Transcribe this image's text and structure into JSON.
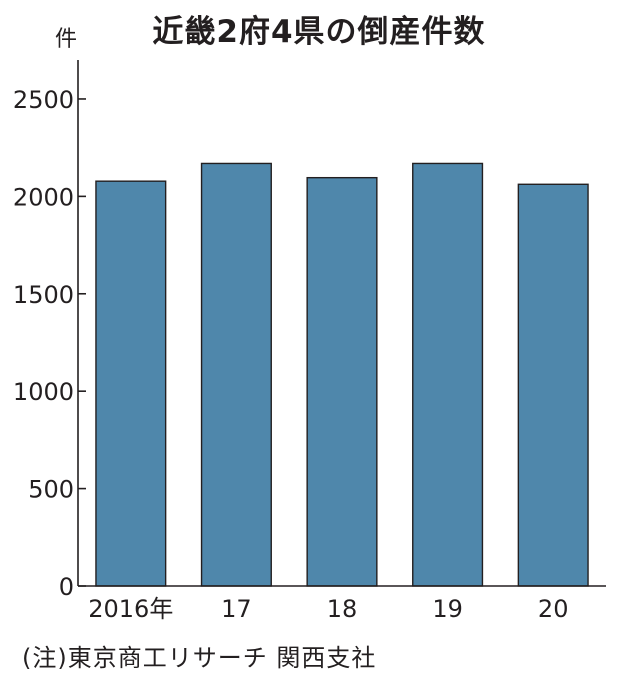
{
  "chart_data": {
    "type": "bar",
    "title": "近畿2府4県の倒産件数",
    "ylabel": "件",
    "xlabel": "",
    "categories": [
      "2016年",
      "17",
      "18",
      "19",
      "20"
    ],
    "values": [
      2078,
      2169,
      2096,
      2169,
      2062
    ],
    "ylim": [
      0,
      2700
    ],
    "yticks": [
      0,
      500,
      1000,
      1500,
      2000,
      2500
    ],
    "grid": false,
    "bar_color": "#4f87ab",
    "note": "(注)東京商工リサーチ 関西支社"
  }
}
